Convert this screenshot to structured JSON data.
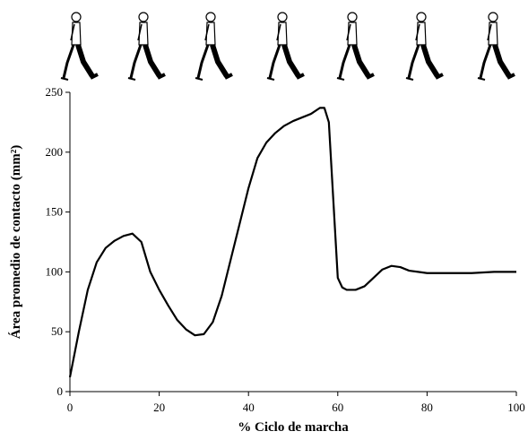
{
  "chart_data": {
    "type": "line",
    "xlabel": "% Ciclo de marcha",
    "ylabel": "Área promedio de contacto (mm²)",
    "x": [
      0,
      2,
      4,
      6,
      8,
      10,
      12,
      14,
      16,
      18,
      20,
      22,
      24,
      26,
      28,
      30,
      32,
      34,
      36,
      38,
      40,
      42,
      44,
      46,
      48,
      50,
      52,
      54,
      56,
      57,
      58,
      59,
      60,
      61,
      62,
      64,
      66,
      68,
      70,
      72,
      74,
      76,
      78,
      80,
      85,
      90,
      95,
      100
    ],
    "series": [
      {
        "name": "Área",
        "color": "#000000",
        "values": [
          12,
          50,
          85,
          108,
          120,
          126,
          130,
          132,
          125,
          100,
          85,
          72,
          60,
          52,
          47,
          48,
          58,
          80,
          110,
          140,
          170,
          195,
          208,
          216,
          222,
          226,
          229,
          232,
          237,
          237,
          225,
          160,
          95,
          87,
          85,
          85,
          88,
          95,
          102,
          105,
          104,
          101,
          100,
          99,
          99,
          99,
          100,
          100
        ]
      }
    ],
    "xlim": [
      0,
      100
    ],
    "xticks": [
      0,
      20,
      40,
      60,
      80,
      100
    ],
    "ylim": [
      0,
      250
    ],
    "yticks": [
      0,
      50,
      100,
      150,
      200,
      250
    ],
    "grid": false
  }
}
